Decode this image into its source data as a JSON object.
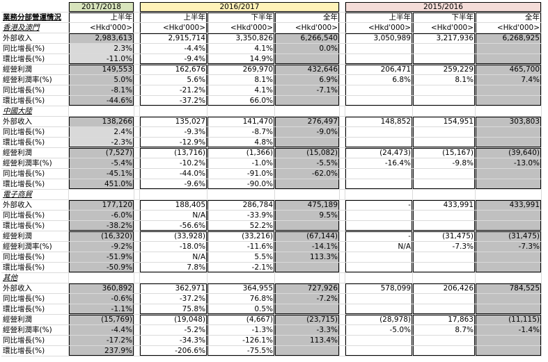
{
  "header": {
    "title": "業務分部營運情況",
    "periods": [
      {
        "label": "2017/2018",
        "columns": [
          "上半年"
        ]
      },
      {
        "label": "2016/2017",
        "columns": [
          "上半年",
          "下半年",
          "全年"
        ]
      },
      {
        "label": "2015/2016",
        "columns": [
          "上半年",
          "下半年",
          "全年"
        ]
      }
    ],
    "units": [
      "<Hkd'000>",
      "<Hkd'000>",
      "<Hkd'000>",
      "<Hkd'000>",
      "<Hkd'000>",
      "<Hkd'000>",
      "<Hkd'000>"
    ]
  },
  "sections": [
    {
      "name": "香港及澳門",
      "rows": [
        {
          "label": "外部收入",
          "values": [
            "2,983,613",
            "2,915,714",
            "3,350,826",
            "6,266,540",
            "3,050,989",
            "3,217,936",
            "6,268,925"
          ]
        },
        {
          "label": "同比增長(%)",
          "values": [
            "2.3%",
            "-4.4%",
            "4.1%",
            "0.0%"
          ]
        },
        {
          "label": "環比增長(%)",
          "values": [
            "-11.0%",
            "-9.4%",
            "14.9%"
          ]
        },
        {
          "label": "經營利潤",
          "values": [
            "149,553",
            "162,676",
            "269,970",
            "432,646",
            "206,471",
            "259,229",
            "465,700"
          ]
        },
        {
          "label": "經營利潤率(%)",
          "values": [
            "5.0%",
            "5.6%",
            "8.1%",
            "6.9%",
            "6.8%",
            "8.1%",
            "7.4%"
          ]
        },
        {
          "label": "同比增長(%)",
          "values": [
            "-8.1%",
            "-21.2%",
            "4.1%",
            "-7.1%"
          ]
        },
        {
          "label": "環比增長(%)",
          "values": [
            "-44.6%",
            "-37.2%",
            "66.0%"
          ]
        }
      ]
    },
    {
      "name": "中國大陸",
      "rows": [
        {
          "label": "外部收入",
          "values": [
            "138,266",
            "135,027",
            "141,470",
            "276,497",
            "148,852",
            "154,951",
            "303,803"
          ]
        },
        {
          "label": "同比增長(%)",
          "values": [
            "2.4%",
            "-9.3%",
            "-8.7%",
            "-9.0%"
          ]
        },
        {
          "label": "環比增長(%)",
          "values": [
            "-2.3%",
            "-12.9%",
            "4.8%"
          ]
        },
        {
          "label": "經營利潤",
          "values": [
            "(7,527)",
            "(13,716)",
            "(1,366)",
            "(15,082)",
            "(24,473)",
            "(15,167)",
            "(39,640)"
          ]
        },
        {
          "label": "經營利潤率(%)",
          "values": [
            "-5.4%",
            "-10.2%",
            "-1.0%",
            "-5.5%",
            "-16.4%",
            "-9.8%",
            "-13.0%"
          ]
        },
        {
          "label": "同比增長(%)",
          "values": [
            "-45.1%",
            "-44.0%",
            "-91.0%",
            "-62.0%"
          ]
        },
        {
          "label": "環比增長(%)",
          "values": [
            "451.0%",
            "-9.6%",
            "-90.0%"
          ]
        }
      ]
    },
    {
      "name": "電子商貿",
      "rows": [
        {
          "label": "外部收入",
          "values": [
            "177,120",
            "188,405",
            "286,784",
            "475,189",
            "-",
            "433,991",
            "433,991"
          ]
        },
        {
          "label": "同比增長(%)",
          "values": [
            "-6.0%",
            "N/A",
            "-33.9%",
            "9.5%"
          ]
        },
        {
          "label": "環比增長(%)",
          "values": [
            "-38.2%",
            "-56.6%",
            "52.2%"
          ]
        },
        {
          "label": "經營利潤",
          "values": [
            "(16,320)",
            "(33,928)",
            "(33,216)",
            "(67,144)",
            "-",
            "(31,475)",
            "(31,475)"
          ]
        },
        {
          "label": "經營利潤率(%)",
          "values": [
            "-9.2%",
            "-18.0%",
            "-11.6%",
            "-14.1%",
            "N/A",
            "-7.3%",
            "-7.3%"
          ]
        },
        {
          "label": "同比增長(%)",
          "values": [
            "-51.9%",
            "N/A",
            "5.5%",
            "113.3%"
          ]
        },
        {
          "label": "環比增長(%)",
          "values": [
            "-50.9%",
            "7.8%",
            "-2.1%"
          ]
        }
      ]
    },
    {
      "name": "其他",
      "rows": [
        {
          "label": "外部收入",
          "values": [
            "360,892",
            "362,971",
            "364,955",
            "727,926",
            "578,099",
            "206,426",
            "784,525"
          ]
        },
        {
          "label": "同比增長(%)",
          "values": [
            "-0.6%",
            "-37.2%",
            "76.8%",
            "-7.2%"
          ]
        },
        {
          "label": "環比增長(%)",
          "values": [
            "-1.1%",
            "75.8%",
            "0.5%"
          ]
        },
        {
          "label": "經營利潤",
          "values": [
            "(15,769)",
            "(19,048)",
            "(4,667)",
            "(23,715)",
            "(28,978)",
            "17,863",
            "(11,115)"
          ]
        },
        {
          "label": "經營利潤率(%)",
          "values": [
            "-4.4%",
            "-5.2%",
            "-1.3%",
            "-3.3%",
            "-5.0%",
            "8.7%",
            "-1.4%"
          ]
        },
        {
          "label": "同比增長(%)",
          "values": [
            "-17.2%",
            "-34.3%",
            "-126.1%",
            "113.4%"
          ]
        },
        {
          "label": "環比增長(%)",
          "values": [
            "237.9%",
            "-206.6%",
            "-75.5%"
          ]
        }
      ]
    }
  ]
}
